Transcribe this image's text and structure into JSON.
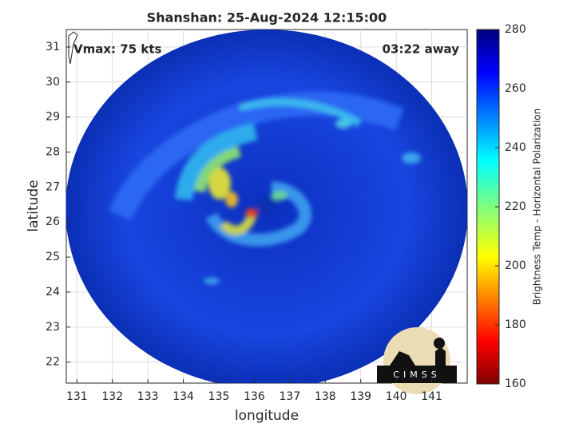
{
  "chart_data": {
    "type": "map",
    "title": "Shanshan: 25-Aug-2024 12:15:00",
    "xlabel": "longitude",
    "ylabel": "latitude",
    "annotations": [
      "Vmax: 75 kts",
      "03:22 away"
    ],
    "xlim": [
      130.7,
      142.0
    ],
    "ylim": [
      21.4,
      31.5
    ],
    "xticks": [
      131,
      132,
      133,
      134,
      135,
      136,
      137,
      138,
      139,
      140,
      141
    ],
    "yticks": [
      22,
      23,
      24,
      25,
      26,
      27,
      28,
      29,
      30,
      31
    ],
    "grid": true,
    "colorbar": {
      "label": "Brightness Temp - Horizontal Polarization",
      "lim": [
        160,
        280
      ],
      "ticks": [
        160,
        180,
        200,
        220,
        240,
        260,
        280
      ],
      "colormap": "jet"
    },
    "logo_text": "CIMSS"
  }
}
